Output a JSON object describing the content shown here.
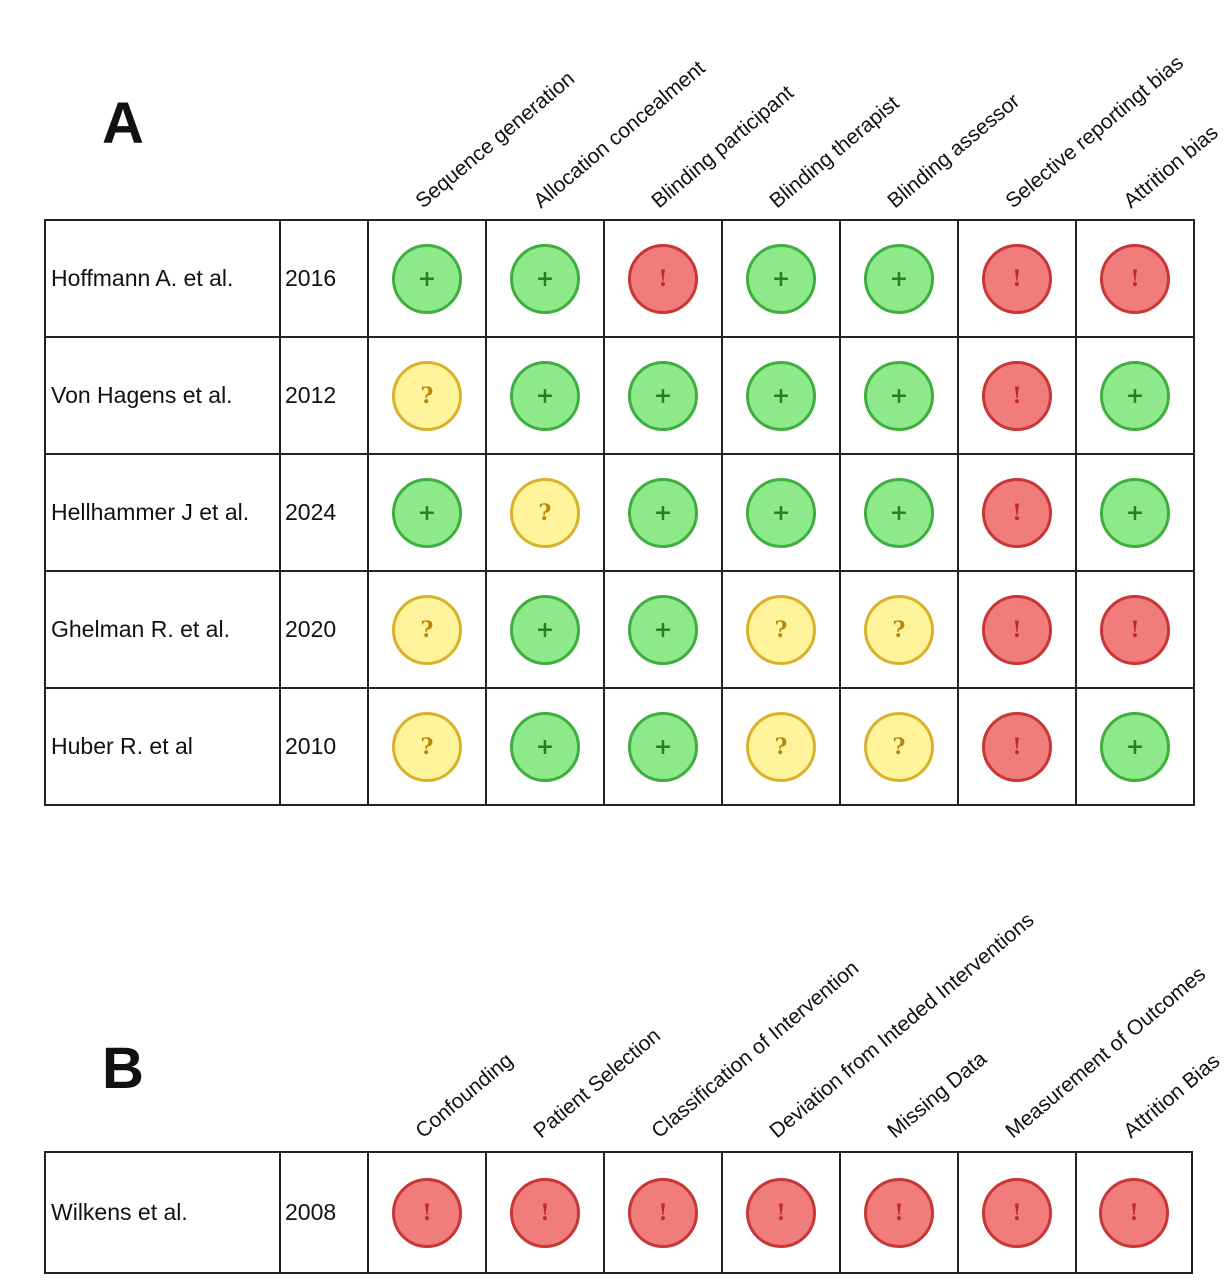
{
  "colors": {
    "low": {
      "fill": "#8de98a",
      "border": "#3fae3f",
      "text": "#2d7a2d"
    },
    "unclear": {
      "fill": "#fff39b",
      "border": "#d9b12a",
      "text": "#b8860b"
    },
    "high": {
      "fill": "#f07c7c",
      "border": "#c93636",
      "text": "#c62828"
    }
  },
  "symbols": {
    "low": "+",
    "unclear": "?",
    "high": "!"
  },
  "panelA": {
    "label": "A",
    "columns": [
      "Sequence generation",
      "Allocation concealment",
      "Blinding participant",
      "Blinding therapist",
      "Blinding assessor",
      "Selective reportingt bias",
      "Attrition bias"
    ],
    "rows": [
      {
        "study": "Hoffmann A. et al.",
        "year": "2016",
        "ratings": [
          "low",
          "low",
          "high",
          "low",
          "low",
          "high",
          "high"
        ]
      },
      {
        "study": "Von Hagens et al.",
        "year": "2012",
        "ratings": [
          "unclear",
          "low",
          "low",
          "low",
          "low",
          "high",
          "low"
        ]
      },
      {
        "study": "Hellhammer J et al.",
        "year": "2024",
        "ratings": [
          "low",
          "unclear",
          "low",
          "low",
          "low",
          "high",
          "low"
        ]
      },
      {
        "study": "Ghelman R. et al.",
        "year": "2020",
        "ratings": [
          "unclear",
          "low",
          "low",
          "unclear",
          "unclear",
          "high",
          "high"
        ]
      },
      {
        "study": "Huber R. et al",
        "year": "2010",
        "ratings": [
          "unclear",
          "low",
          "low",
          "unclear",
          "unclear",
          "high",
          "low"
        ]
      }
    ]
  },
  "panelB": {
    "label": "B",
    "columns": [
      "Confounding",
      "Patient Selection",
      "Classification of Intervention",
      "Deviation from Inteded Interventions",
      "Missing Data",
      "Measurement of Outcomes",
      "Attrition Bias"
    ],
    "rows": [
      {
        "study": "Wilkens et al.",
        "year": "2008",
        "ratings": [
          "high",
          "high",
          "high",
          "high",
          "high",
          "high",
          "high"
        ]
      }
    ]
  }
}
